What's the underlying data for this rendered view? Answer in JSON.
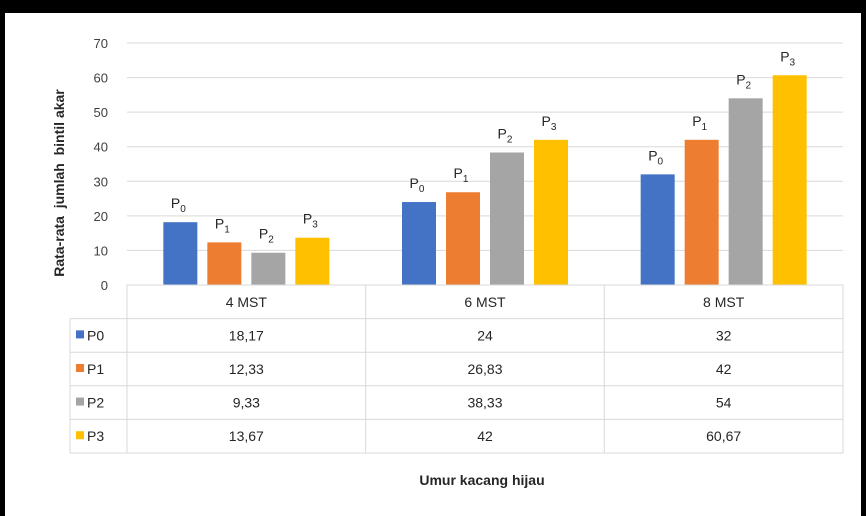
{
  "chart_data": {
    "type": "bar",
    "categories": [
      "4 MST",
      "6 MST",
      "8 MST"
    ],
    "series": [
      {
        "name": "P0",
        "bar_label": "P",
        "bar_label_sub": "0",
        "color": "#4472C4",
        "values": [
          18.17,
          24,
          32
        ],
        "display": [
          "18,17",
          "24",
          "32"
        ]
      },
      {
        "name": "P1",
        "bar_label": "P",
        "bar_label_sub": "1",
        "color": "#ED7D31",
        "values": [
          12.33,
          26.83,
          42
        ],
        "display": [
          "12,33",
          "26,83",
          "42"
        ]
      },
      {
        "name": "P2",
        "bar_label": "P",
        "bar_label_sub": "2",
        "color": "#A5A5A5",
        "values": [
          9.33,
          38.33,
          54
        ],
        "display": [
          "9,33",
          "38,33",
          "54"
        ]
      },
      {
        "name": "P3",
        "bar_label": "P",
        "bar_label_sub": "3",
        "color": "#FFC000",
        "values": [
          13.67,
          42,
          60.67
        ],
        "display": [
          "13,67",
          "42",
          "60,67"
        ]
      }
    ],
    "ylabel": "Rata-rata  jumlah  bintil akar",
    "xlabel": "Umur kacang  hijau",
    "ylim": [
      0,
      70
    ],
    "yticks": [
      0,
      10,
      20,
      30,
      40,
      50,
      60,
      70
    ],
    "grid": true,
    "legend": "data-table"
  }
}
